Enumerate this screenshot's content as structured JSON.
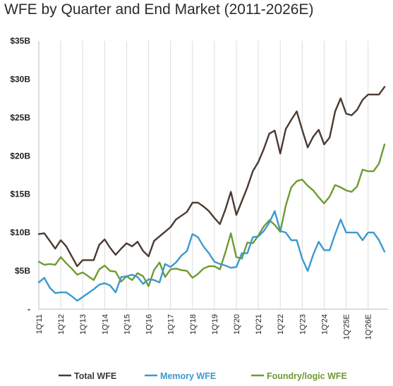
{
  "chart_data": {
    "type": "line",
    "title": "WFE by Quarter and End Market (2011-2026E)",
    "xlabel": "",
    "ylabel": "",
    "ylim": [
      0,
      35
    ],
    "y_ticks": [
      "-",
      "$5B",
      "$10B",
      "$15B",
      "$20B",
      "$25B",
      "$30B",
      "$35B"
    ],
    "x_tick_labels": [
      "1Q'11",
      "1Q'12",
      "1Q'13",
      "1Q'14",
      "1Q'15",
      "1Q'16",
      "1Q'17",
      "1Q'18",
      "1Q'19",
      "1Q'20",
      "1Q'21",
      "1Q'22",
      "1Q'23",
      "1Q'24",
      "1Q'25E",
      "1Q'26E"
    ],
    "grid": "vertical",
    "legend": "bottom",
    "series": [
      {
        "name": "Total WFE",
        "color": "#4a3a32",
        "values": [
          9.8,
          9.9,
          8.9,
          7.9,
          9.0,
          8.2,
          6.9,
          5.6,
          6.4,
          6.4,
          6.4,
          8.4,
          9.1,
          8.0,
          7.1,
          7.9,
          8.6,
          8.2,
          8.8,
          7.6,
          6.9,
          8.9,
          9.5,
          10.1,
          10.7,
          11.7,
          12.2,
          12.7,
          13.9,
          13.9,
          13.4,
          12.8,
          11.9,
          11.1,
          13.0,
          15.3,
          12.3,
          14.1,
          15.9,
          18.0,
          19.2,
          20.9,
          22.9,
          23.3,
          20.3,
          23.5,
          24.7,
          25.8,
          23.4,
          21.1,
          22.5,
          23.4,
          21.5,
          22.4,
          25.8,
          27.5,
          25.5,
          25.3,
          26.0,
          27.3,
          28.0,
          28.0,
          28.0,
          29.0
        ]
      },
      {
        "name": "Memory WFE",
        "color": "#3b99cf",
        "values": [
          3.5,
          4.1,
          2.8,
          2.1,
          2.2,
          2.2,
          1.7,
          1.1,
          1.6,
          2.1,
          2.6,
          3.2,
          3.4,
          3.1,
          2.2,
          4.2,
          4.3,
          4.5,
          4.2,
          3.3,
          3.9,
          3.8,
          3.5,
          5.9,
          5.5,
          6.1,
          7.0,
          7.6,
          9.8,
          9.4,
          8.2,
          7.3,
          6.2,
          5.9,
          5.7,
          5.4,
          5.5,
          7.3,
          7.3,
          9.4,
          9.5,
          10.2,
          11.3,
          12.8,
          10.2,
          10.0,
          9.0,
          9.0,
          6.6,
          5.0,
          7.1,
          8.8,
          7.7,
          7.7,
          9.8,
          11.7,
          10.0,
          10.0,
          10.0,
          9.0,
          10.0,
          10.0,
          9.0,
          7.5
        ]
      },
      {
        "name": "Foundry/logic WFE",
        "color": "#6f9a32",
        "values": [
          6.2,
          5.8,
          5.9,
          5.8,
          6.8,
          6.0,
          5.3,
          4.5,
          4.8,
          4.3,
          3.8,
          5.2,
          5.7,
          5.0,
          4.9,
          3.6,
          4.3,
          3.8,
          4.7,
          4.3,
          3.0,
          5.1,
          6.1,
          4.2,
          5.2,
          5.3,
          5.1,
          5.0,
          4.1,
          4.6,
          5.3,
          5.6,
          5.6,
          5.2,
          7.4,
          9.9,
          6.8,
          6.6,
          8.7,
          8.6,
          9.6,
          10.8,
          11.6,
          11.0,
          10.1,
          13.5,
          15.9,
          16.7,
          16.9,
          16.1,
          15.5,
          14.6,
          13.8,
          14.7,
          16.2,
          15.9,
          15.5,
          15.3,
          16.0,
          18.2,
          18.0,
          18.0,
          19.0,
          21.5
        ]
      }
    ]
  }
}
